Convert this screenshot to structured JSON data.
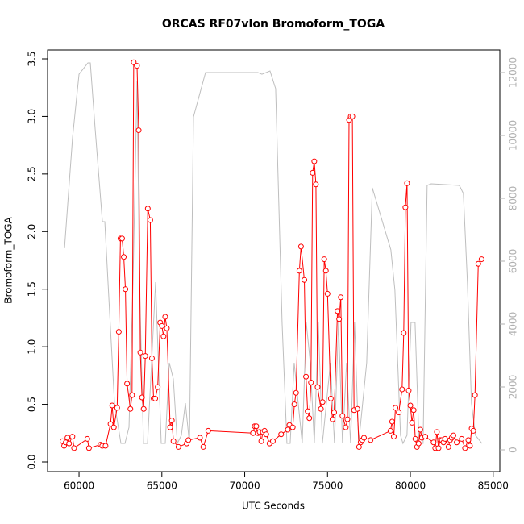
{
  "chart_data": {
    "type": "line",
    "title": "ORCAS RF07vlon Bromoform_TOGA",
    "xlabel": "UTC Seconds",
    "ylabel": "Bromoform_TOGA",
    "xlim": [
      58100,
      85400
    ],
    "ylim": [
      -0.084,
      3.577
    ],
    "y2lim": [
      -692,
      12718
    ],
    "xticks": [
      60000,
      65000,
      70000,
      75000,
      80000,
      85000
    ],
    "yticks": [
      {
        "value": 0,
        "label": "0.0"
      },
      0.5,
      {
        "value": 1,
        "label": "1.0"
      },
      1.5,
      {
        "value": 2,
        "label": "2.0"
      },
      2.5,
      {
        "value": 3,
        "label": "3.0"
      },
      3.5
    ],
    "y2ticks": [
      0,
      2000,
      4000,
      6000,
      8000,
      10000,
      12000
    ],
    "series": [
      {
        "color": "#bebebe",
        "axis": "y2",
        "x": [
          59124,
          59611,
          60000,
          60535,
          60681,
          60973,
          61411,
          61556,
          61800,
          62140,
          62529,
          62772,
          63016,
          63259,
          63502,
          63648,
          63891,
          64134,
          64378,
          64621,
          64961,
          65204,
          65448,
          65691,
          65934,
          66177,
          66420,
          66664,
          66907,
          67636,
          67880,
          70798,
          71041,
          71528,
          71868,
          72257,
          72549,
          72744,
          72987,
          73230,
          73473,
          73716,
          73960,
          74203,
          74446,
          74689,
          75176,
          75419,
          75662,
          75905,
          76148,
          76392,
          76635,
          76878,
          77364,
          77705,
          78824,
          79067,
          79407,
          79553,
          79796,
          80040,
          80283,
          80526,
          80769,
          81012,
          81256,
          82958,
          83201,
          83444,
          83688,
          83931,
          84320
        ],
        "values": [
          6410,
          9948,
          11948,
          12307,
          12307,
          10205,
          7256,
          7256,
          4820,
          1487,
          205,
          205,
          718,
          5333,
          11743,
          5333,
          205,
          205,
          2769,
          5333,
          205,
          205,
          2769,
          2256,
          205,
          462,
          1487,
          205,
          10589,
          12000,
          12000,
          12000,
          11948,
          12051,
          11487,
          4051,
          205,
          205,
          2769,
          1487,
          205,
          4051,
          2769,
          205,
          4051,
          205,
          2769,
          205,
          4051,
          205,
          2769,
          205,
          4051,
          205,
          2769,
          8333,
          6359,
          5077,
          462,
          205,
          462,
          4051,
          4051,
          205,
          205,
          8410,
          8461,
          8410,
          8154,
          5333,
          1487,
          462,
          205
        ]
      },
      {
        "color": "#ff0000",
        "marker": "circle",
        "x": [
          59000,
          59100,
          59200,
          59300,
          59400,
          59600,
          59700,
          60500,
          60600,
          61300,
          61400,
          61600,
          61900,
          62000,
          62100,
          62300,
          62400,
          62500,
          62600,
          62700,
          62800,
          62900,
          63100,
          63200,
          63300,
          63500,
          63600,
          63700,
          63800,
          63900,
          64000,
          64150,
          64300,
          64400,
          64500,
          64600,
          64750,
          64900,
          65000,
          65100,
          65200,
          65300,
          65500,
          65600,
          65700,
          66000,
          66500,
          66600,
          67300,
          67500,
          67800,
          70500,
          70600,
          70700,
          70800,
          70900,
          71000,
          71100,
          71200,
          71300,
          71500,
          71700,
          72200,
          72600,
          72700,
          72900,
          73000,
          73100,
          73300,
          73400,
          73600,
          73700,
          73800,
          73900,
          74000,
          74100,
          74200,
          74300,
          74400,
          74600,
          74700,
          74800,
          74900,
          75000,
          75200,
          75300,
          75400,
          75600,
          75700,
          75800,
          75900,
          76100,
          76200,
          76300,
          76400,
          76500,
          76600,
          76800,
          76900,
          77000,
          77100,
          77200,
          77600,
          78800,
          78900,
          79000,
          79100,
          79300,
          79500,
          79600,
          79700,
          79800,
          79900,
          80000,
          80100,
          80200,
          80300,
          80400,
          80500,
          80600,
          80700,
          80900,
          81400,
          81500,
          81600,
          81700,
          81800,
          81900,
          82000,
          82100,
          82300,
          82400,
          82500,
          82600,
          82800,
          83100,
          83300,
          83500,
          83600,
          83700,
          83800,
          83900,
          84100,
          84300
        ],
        "values": [
          0.18,
          0.14,
          0.17,
          0.21,
          0.16,
          0.22,
          0.12,
          0.2,
          0.12,
          0.15,
          0.14,
          0.14,
          0.33,
          0.49,
          0.3,
          0.47,
          1.13,
          1.94,
          1.94,
          1.78,
          1.5,
          0.68,
          0.46,
          0.58,
          3.47,
          3.44,
          2.88,
          0.95,
          0.56,
          0.46,
          0.92,
          2.2,
          2.1,
          0.9,
          0.55,
          0.55,
          0.65,
          1.21,
          1.18,
          1.09,
          1.26,
          1.16,
          0.3,
          0.36,
          0.18,
          0.13,
          0.16,
          0.19,
          0.21,
          0.13,
          0.27,
          0.25,
          0.31,
          0.31,
          0.25,
          0.26,
          0.18,
          0.26,
          0.27,
          0.24,
          0.16,
          0.18,
          0.24,
          0.28,
          0.32,
          0.3,
          0.5,
          0.6,
          1.66,
          1.87,
          1.58,
          0.74,
          0.44,
          0.38,
          0.69,
          2.51,
          2.61,
          2.41,
          0.65,
          0.46,
          0.52,
          1.76,
          1.66,
          1.46,
          0.55,
          0.37,
          0.43,
          1.31,
          1.24,
          1.43,
          0.4,
          0.3,
          0.37,
          2.97,
          3.0,
          3.0,
          0.45,
          0.46,
          0.13,
          0.17,
          0.19,
          0.21,
          0.19,
          0.27,
          0.35,
          0.22,
          0.47,
          0.43,
          0.63,
          1.12,
          2.21,
          2.42,
          0.62,
          0.49,
          0.34,
          0.45,
          0.2,
          0.13,
          0.16,
          0.28,
          0.21,
          0.22,
          0.17,
          0.12,
          0.26,
          0.12,
          0.19,
          0.19,
          0.17,
          0.2,
          0.13,
          0.19,
          0.21,
          0.23,
          0.17,
          0.2,
          0.12,
          0.19,
          0.14,
          0.29,
          0.27,
          0.58,
          1.72,
          1.76
        ]
      }
    ]
  }
}
